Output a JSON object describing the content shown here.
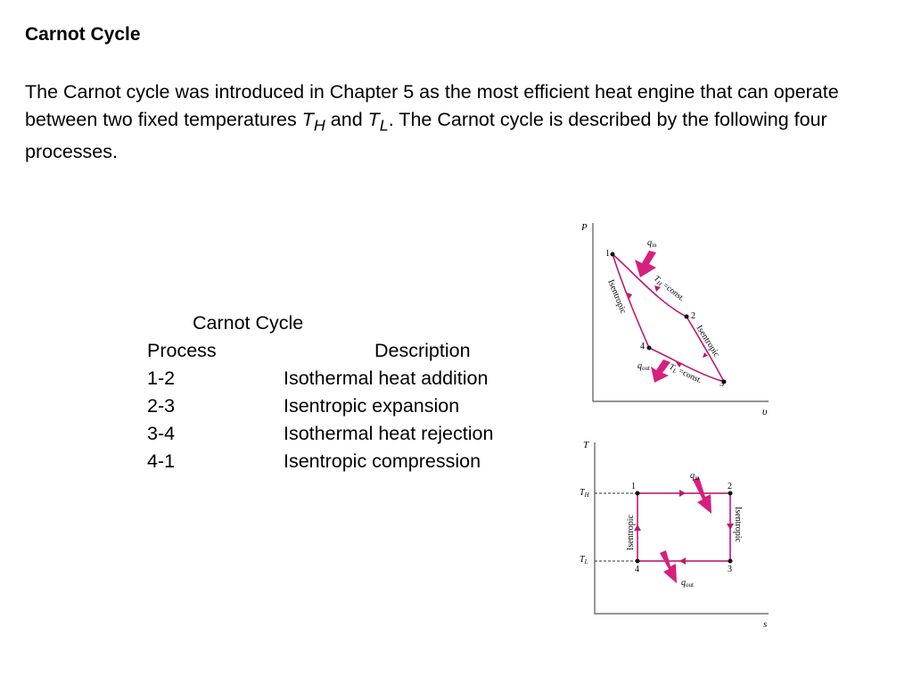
{
  "heading": "Carnot Cycle",
  "intro": {
    "part1": "The Carnot cycle was introduced in Chapter 5 as the most efficient heat engine that can operate between two fixed temperatures ",
    "th_T": "T",
    "th_sub": "H",
    "and": " and ",
    "tl_T": "T",
    "tl_sub": "L",
    "part2": ".  The Carnot cycle is described by the following four processes."
  },
  "table": {
    "caption": "Carnot Cycle",
    "headers": [
      "Process",
      "Description"
    ],
    "rows": [
      {
        "process": "1-2",
        "description": "Isothermal heat addition"
      },
      {
        "process": "2-3",
        "description": "Isentropic expansion"
      },
      {
        "process": "3-4",
        "description": "Isothermal heat rejection"
      },
      {
        "process": "4-1",
        "description": "Isentropic compression"
      }
    ]
  },
  "pv_diagram": {
    "y_axis": "P",
    "x_axis": "υ",
    "points": [
      "1",
      "2",
      "3",
      "4"
    ],
    "q_in": {
      "q": "q",
      "sub": "in"
    },
    "q_out": {
      "q": "q",
      "sub": "out"
    },
    "th_label": {
      "t": "T",
      "sub": "H",
      "rest": " =const."
    },
    "tl_label": {
      "t": "T",
      "sub": "L",
      "rest": " =const."
    },
    "isentropic_left": "Isentropic",
    "isentropic_right": "Isentropic"
  },
  "ts_diagram": {
    "y_axis": "T",
    "x_axis": "s",
    "th_tick": {
      "t": "T",
      "sub": "H"
    },
    "tl_tick": {
      "t": "T",
      "sub": "L"
    },
    "points": [
      "1",
      "2",
      "3",
      "4"
    ],
    "q_in": {
      "q": "q",
      "sub": "in"
    },
    "q_out": {
      "q": "q",
      "sub": "out"
    },
    "isentropic_left": "Isentropic",
    "isentropic_right": "Isentropic"
  },
  "colors": {
    "process_line": "#c0186e",
    "heat_arrow": "#d6207e",
    "axis": "#555555",
    "dashed": "#333333"
  }
}
